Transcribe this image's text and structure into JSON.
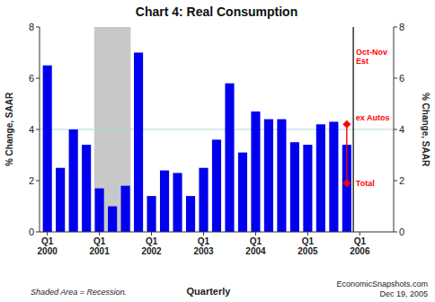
{
  "chart_data": {
    "type": "bar",
    "title": "Chart 4: Real Consumption",
    "ylabel": "% Change, SAAR",
    "y2label": "% Change, SAAR",
    "categories": [
      "Q1\n2000",
      null,
      null,
      null,
      "Q1\n2001",
      null,
      null,
      null,
      "Q1\n2002",
      null,
      null,
      null,
      "Q1\n2003",
      null,
      null,
      null,
      "Q1\n2004",
      null,
      null,
      null,
      "Q1\n2005",
      null,
      null,
      null,
      "Q1\n2006"
    ],
    "values": [
      6.5,
      2.5,
      4.0,
      3.4,
      1.7,
      1.0,
      1.8,
      7.0,
      1.4,
      2.4,
      2.3,
      1.4,
      2.5,
      3.6,
      5.8,
      3.1,
      4.7,
      4.4,
      4.4,
      3.5,
      3.4,
      4.2,
      4.3,
      3.4,
      null
    ],
    "color": "#0000EE",
    "ylim": [
      0,
      8
    ],
    "yticks": [
      0,
      2,
      4,
      6,
      8
    ],
    "y2lim": [
      0,
      8
    ],
    "y2ticks": [
      0,
      2,
      4,
      6,
      8
    ],
    "grid": false,
    "bands": [
      {
        "start": 4,
        "end": 6,
        "color": "#C8C8C8"
      }
    ],
    "hlines": [
      {
        "y": 4.0,
        "color": "#ADD8E6"
      }
    ],
    "vlines": [
      {
        "x": 23.5,
        "color": "black"
      }
    ],
    "forecast": {
      "x": 23,
      "values": [
        4.2,
        1.9
      ],
      "labels": [
        "ex Autos",
        "Total"
      ],
      "color": "red",
      "marker": "diamond"
    },
    "annotations": [
      {
        "text": "Oct-Nov\nEst",
        "x": 23.5,
        "y": 7.2,
        "color": "red"
      }
    ],
    "footnotes": [
      "Shaded Area = Recession.",
      "Quarterly",
      "EconomicSnapshots.com\nDec 19, 2005"
    ]
  }
}
